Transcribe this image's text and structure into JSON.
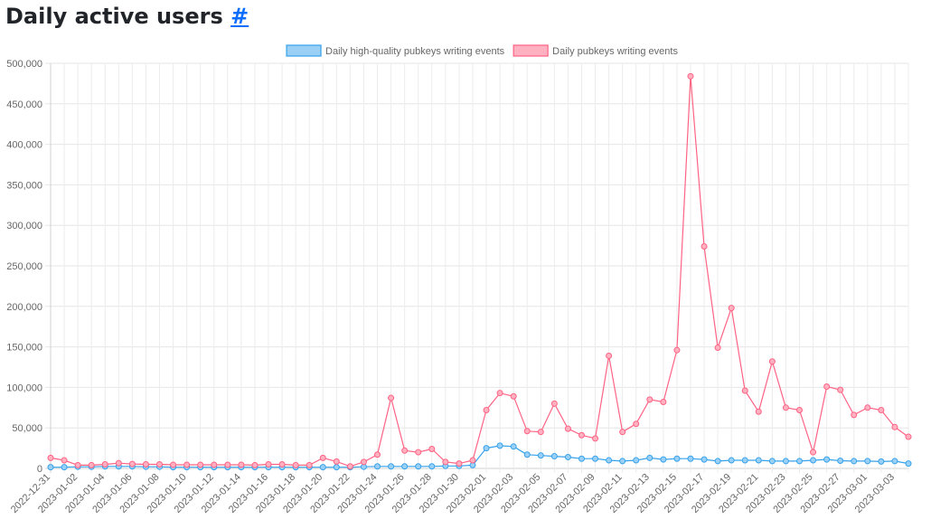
{
  "page": {
    "title": "Daily active users",
    "anchor_label": "#"
  },
  "chart_data": {
    "type": "line",
    "title": "",
    "xlabel": "",
    "ylabel": "",
    "ylim": [
      0,
      500000
    ],
    "yticks": [
      0,
      50000,
      100000,
      150000,
      200000,
      250000,
      300000,
      350000,
      400000,
      450000,
      500000
    ],
    "grid": true,
    "legend_position": "top-center",
    "x": [
      "2022-12-31",
      "2023-01-01",
      "2023-01-02",
      "2023-01-03",
      "2023-01-04",
      "2023-01-05",
      "2023-01-06",
      "2023-01-07",
      "2023-01-08",
      "2023-01-09",
      "2023-01-10",
      "2023-01-11",
      "2023-01-12",
      "2023-01-13",
      "2023-01-14",
      "2023-01-15",
      "2023-01-16",
      "2023-01-17",
      "2023-01-18",
      "2023-01-19",
      "2023-01-20",
      "2023-01-21",
      "2023-01-22",
      "2023-01-23",
      "2023-01-24",
      "2023-01-25",
      "2023-01-26",
      "2023-01-27",
      "2023-01-28",
      "2023-01-29",
      "2023-01-30",
      "2023-01-31",
      "2023-02-01",
      "2023-02-02",
      "2023-02-03",
      "2023-02-04",
      "2023-02-05",
      "2023-02-06",
      "2023-02-07",
      "2023-02-08",
      "2023-02-09",
      "2023-02-10",
      "2023-02-11",
      "2023-02-12",
      "2023-02-13",
      "2023-02-14",
      "2023-02-15",
      "2023-02-16",
      "2023-02-17",
      "2023-02-18",
      "2023-02-19",
      "2023-02-20",
      "2023-02-21",
      "2023-02-22",
      "2023-02-23",
      "2023-02-24",
      "2023-02-25",
      "2023-02-26",
      "2023-02-27",
      "2023-02-28",
      "2023-03-01",
      "2023-03-02",
      "2023-03-03",
      "2023-03-04"
    ],
    "x_tick_labels": [
      "2022-12-31",
      "2023-01-02",
      "2023-01-04",
      "2023-01-06",
      "2023-01-08",
      "2023-01-10",
      "2023-01-12",
      "2023-01-14",
      "2023-01-16",
      "2023-01-18",
      "2023-01-20",
      "2023-01-22",
      "2023-01-24",
      "2023-01-26",
      "2023-01-28",
      "2023-01-30",
      "2023-02-01",
      "2023-02-03",
      "2023-02-05",
      "2023-02-07",
      "2023-02-09",
      "2023-02-11",
      "2023-02-13",
      "2023-02-15",
      "2023-02-17",
      "2023-02-19",
      "2023-02-21",
      "2023-02-23",
      "2023-02-25",
      "2023-02-27",
      "2023-03-01",
      "2023-03-03"
    ],
    "series": [
      {
        "name": "Daily high-quality pubkeys writing events",
        "color": "#36a2eb",
        "fill": "#9ad0f5",
        "values": [
          1500,
          1500,
          2000,
          2000,
          2500,
          2500,
          2500,
          2000,
          2000,
          1500,
          1500,
          1500,
          1500,
          1500,
          1500,
          1500,
          1500,
          1500,
          1500,
          1500,
          1500,
          1500,
          1500,
          2000,
          2500,
          2500,
          2500,
          2500,
          2500,
          3000,
          3000,
          4000,
          25000,
          28000,
          27000,
          17000,
          16000,
          15000,
          14000,
          12000,
          12000,
          10000,
          9000,
          10000,
          13000,
          11000,
          12000,
          12000,
          11000,
          9000,
          10000,
          10000,
          10000,
          9000,
          9000,
          9000,
          10000,
          11000,
          9500,
          9000,
          9000,
          8500,
          9000,
          6000
        ]
      },
      {
        "name": "Daily pubkeys writing events",
        "color": "#ff6384",
        "fill": "#ffb1c1",
        "values": [
          13000,
          10000,
          4000,
          4000,
          5000,
          6500,
          5500,
          5000,
          5000,
          4500,
          4500,
          4500,
          4500,
          4500,
          4500,
          4000,
          5000,
          5000,
          4000,
          4000,
          13000,
          8500,
          2500,
          8000,
          17000,
          87000,
          22000,
          20000,
          24000,
          8000,
          6000,
          10000,
          72000,
          93000,
          89000,
          46000,
          45000,
          80000,
          49000,
          41000,
          37000,
          139000,
          45000,
          55000,
          85000,
          82000,
          146000,
          484000,
          274000,
          149000,
          198000,
          96000,
          70000,
          132000,
          75000,
          72000,
          20000,
          101000,
          97000,
          66000,
          75000,
          72000,
          51000,
          39000
        ]
      }
    ]
  }
}
